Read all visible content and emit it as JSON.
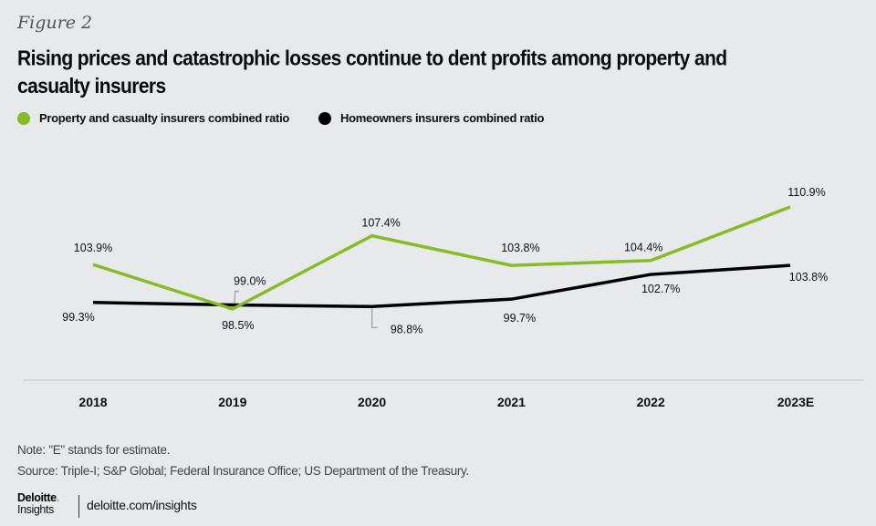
{
  "figure_label": "Figure 2",
  "title": "Rising prices and catastrophic losses continue to dent profits among property and casualty insurers",
  "legend": [
    {
      "label": "Property and casualty insurers combined ratio",
      "color": "#86bc25"
    },
    {
      "label": "Homeowners insurers combined ratio",
      "color": "#000000"
    }
  ],
  "chart_data": {
    "type": "line",
    "title": "Rising prices and catastrophic losses continue to dent profits among property and casualty insurers",
    "xlabel": "",
    "ylabel": "",
    "categories": [
      "2018",
      "2019",
      "2020",
      "2021",
      "2022",
      "2023E"
    ],
    "series": [
      {
        "name": "Property and casualty insurers combined ratio",
        "color": "#86bc25",
        "values": [
          103.9,
          98.5,
          107.4,
          103.8,
          104.4,
          110.9
        ],
        "labels": [
          "103.9%",
          "98.5%",
          "107.4%",
          "103.8%",
          "104.4%",
          "110.9%"
        ]
      },
      {
        "name": "Homeowners insurers combined ratio",
        "color": "#000000",
        "values": [
          99.3,
          99.0,
          98.8,
          99.7,
          102.7,
          103.8
        ],
        "labels": [
          "99.3%",
          "99.0%",
          "98.8%",
          "99.7%",
          "102.7%",
          "103.8%"
        ]
      }
    ],
    "ylim": [
      90,
      112
    ],
    "grid": false,
    "legend_position": "top-left"
  },
  "footer": {
    "note": "Note: \"E\" stands for estimate.",
    "source": "Source: Triple-I; S&P Global; Federal Insurance Office; US Department of the Treasury.",
    "logo_top": "Deloitte",
    "logo_dot": ".",
    "logo_bottom": "Insights",
    "url": "deloitte.com/insights"
  }
}
